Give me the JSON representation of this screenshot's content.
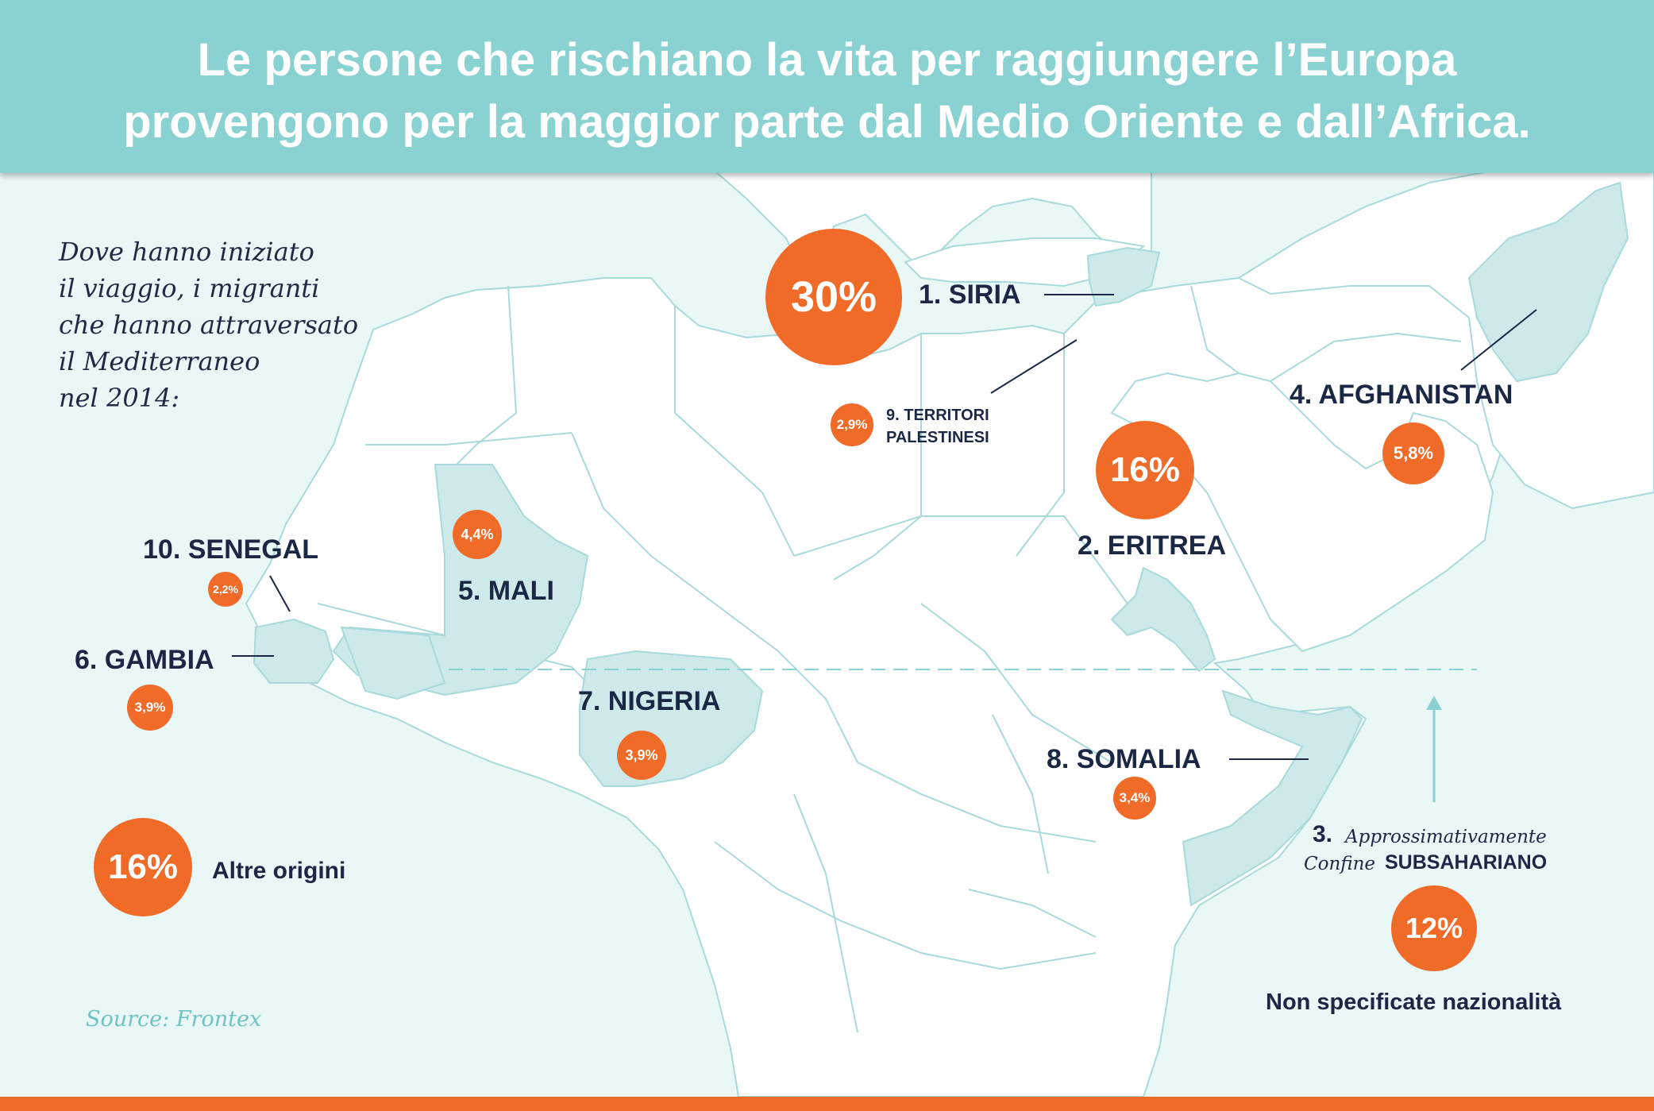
{
  "title": {
    "line1": "Le persone che rischiano la vita per raggiungere l’Europa",
    "line2": "provengono per la maggior parte dal Medio Oriente e dall’Africa."
  },
  "intro_lines": [
    "Dove hanno iniziato",
    "il viaggio, i migranti",
    "che hanno attraversato",
    "il Mediterraneo",
    "nel 2014:"
  ],
  "origins": {
    "siria": {
      "label": "1. SIRIA",
      "value": "30%"
    },
    "eritrea": {
      "label": "2. ERITREA",
      "value": "16%"
    },
    "subsahariano": {
      "rank": "3.",
      "text_approx": "Approssimativamente",
      "text_confine": "Confine",
      "text_sub": "SUBSAHARIANO",
      "value": "12%",
      "caption": "Non specificate nazionalità"
    },
    "afghanistan": {
      "label": "4. AFGHANISTAN",
      "value": "5,8%"
    },
    "mali": {
      "label": "5. MALI",
      "value": "4,4%"
    },
    "gambia": {
      "label": "6. GAMBIA",
      "value": "3,9%"
    },
    "nigeria": {
      "label": "7. NIGERIA",
      "value": "3,9%"
    },
    "somalia": {
      "label": "8. SOMALIA",
      "value": "3,4%"
    },
    "palestina": {
      "label_line1": "9. TERRITORI",
      "label_line2": "PALESTINESI",
      "value": "2,9%"
    },
    "senegal": {
      "label": "10. SENEGAL",
      "value": "2,2%"
    },
    "altre": {
      "label": "Altre origini",
      "value": "16%"
    }
  },
  "source": "Source: Frontex",
  "colors": {
    "header": "#8ad1d1",
    "sea": "#eaf7f7",
    "land": "#ffffff",
    "highlight": "#cde9ea",
    "border": "#a9dadb",
    "accent": "#f06a28",
    "text": "#1a2745"
  }
}
